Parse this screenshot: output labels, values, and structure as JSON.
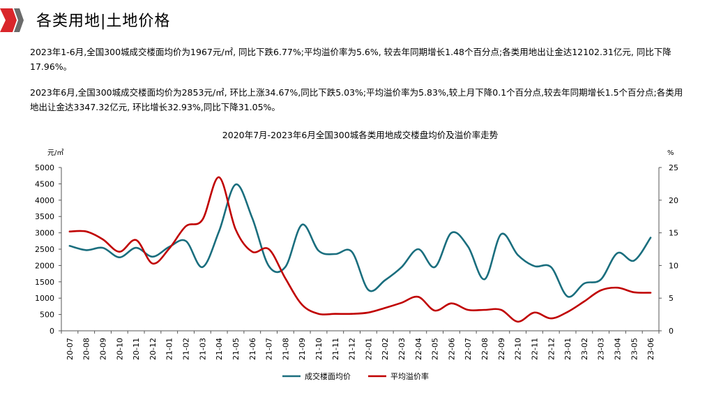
{
  "page_title": "各类用地|土地价格",
  "paragraphs": [
    "2023年1-6月,全国300城成交楼面均价为1967元/㎡, 同比下跌6.77%;平均溢价率为5.6%, 较去年同期增长1.48个百分点;各类用地出让金达12102.31亿元, 同比下降17.96%。",
    "2023年6月,全国300城成交楼面均价为2853元/㎡, 环比上涨34.67%,同比下跌5.03%;平均溢价率为5.83%,较上月下降0.1个百分点,较去年同期增长1.5个百分点;各类用地出让金达3347.32亿元, 环比增长32.93%,同比下降31.05%。"
  ],
  "colors": {
    "price": "#1a6e7e",
    "premium": "#c00000",
    "logo_red": "#d9262b",
    "logo_gray": "#6b6b6b"
  },
  "chart_data": {
    "type": "line",
    "title": "2020年7月-2023年6月全国300城各类用地成交楼盘均价及溢价率走势",
    "y_left_unit": "元/㎡",
    "y_right_unit": "%",
    "y_left_range": [
      0,
      5000
    ],
    "y_left_ticks": [
      "0",
      "500",
      "1000",
      "1500",
      "2000",
      "2500",
      "3000",
      "3500",
      "4000",
      "4500",
      "5000"
    ],
    "y_right_range": [
      0,
      25
    ],
    "y_right_ticks": [
      "0",
      "5",
      "10",
      "15",
      "20",
      "25"
    ],
    "categories": [
      "20-07",
      "20-08",
      "20-09",
      "20-10",
      "20-11",
      "20-12",
      "21-01",
      "21-02",
      "21-03",
      "21-04",
      "21-05",
      "21-06",
      "21-07",
      "21-08",
      "21-09",
      "21-10",
      "21-11",
      "21-12",
      "22-01",
      "22-02",
      "22-03",
      "22-04",
      "22-05",
      "22-06",
      "22-07",
      "22-08",
      "22-09",
      "22-10",
      "22-11",
      "22-12",
      "23-01",
      "23-02",
      "23-03",
      "23-04",
      "23-05",
      "23-06"
    ],
    "series": [
      {
        "name": "成交楼面均价",
        "axis": "left",
        "color": "#1a6e7e",
        "values": [
          2600,
          2470,
          2540,
          2250,
          2540,
          2270,
          2570,
          2750,
          1950,
          3050,
          4480,
          3450,
          1980,
          1960,
          3250,
          2450,
          2350,
          2420,
          1250,
          1550,
          1950,
          2500,
          1950,
          3000,
          2580,
          1580,
          2960,
          2320,
          1980,
          1950,
          1050,
          1450,
          1570,
          2380,
          2150,
          2853
        ]
      },
      {
        "name": "平均溢价率",
        "axis": "right",
        "color": "#c00000",
        "values": [
          15.2,
          15.2,
          14.0,
          12.1,
          13.9,
          10.3,
          12.6,
          16.0,
          17.0,
          23.5,
          15.5,
          12.1,
          12.5,
          8.0,
          4.0,
          2.6,
          2.6,
          2.6,
          2.8,
          3.5,
          4.3,
          5.2,
          3.1,
          4.2,
          3.2,
          3.2,
          3.2,
          1.4,
          2.8,
          1.9,
          2.9,
          4.5,
          6.2,
          6.6,
          5.9,
          5.83
        ]
      }
    ],
    "legend_position": "bottom",
    "grid": false
  }
}
